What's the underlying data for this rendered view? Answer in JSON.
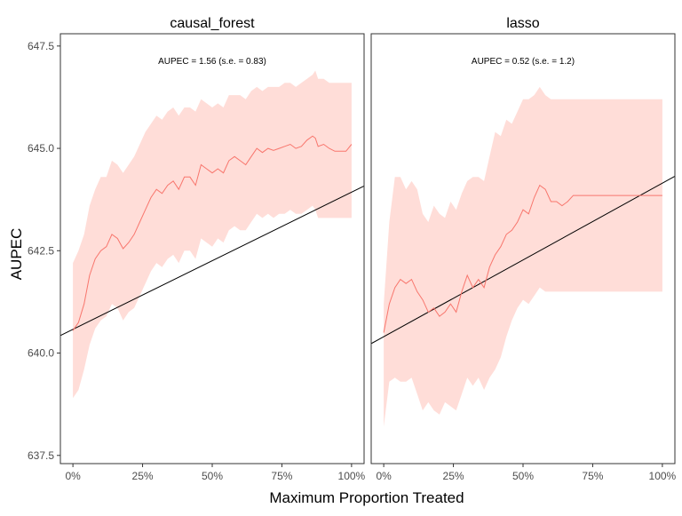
{
  "chart_data": {
    "type": "line",
    "xlabel": "Maximum Proportion Treated",
    "ylabel": "AUPEC",
    "xlim": [
      0,
      1
    ],
    "ylim": [
      637.3,
      647.8
    ],
    "x_ticks": [
      0,
      0.25,
      0.5,
      0.75,
      1.0
    ],
    "x_tick_labels": [
      "0%",
      "25%",
      "50%",
      "75%",
      "100%"
    ],
    "y_ticks": [
      637.5,
      640.0,
      642.5,
      645.0,
      647.5
    ],
    "y_tick_labels": [
      "637.5",
      "640.0",
      "642.5",
      "645.0",
      "647.5"
    ],
    "grid": false,
    "colors": {
      "line": "#F8766D",
      "band": "#FFDDD8",
      "reference": "#000000",
      "border": "#333333"
    },
    "panels": [
      {
        "title": "causal_forest",
        "annotation": "AUPEC = 1.56 (s.e. = 0.83)",
        "reference_line": {
          "intercept": 640.58,
          "slope": 3.35
        },
        "series": {
          "x": [
            0.0,
            0.02,
            0.04,
            0.06,
            0.08,
            0.1,
            0.12,
            0.14,
            0.16,
            0.18,
            0.2,
            0.22,
            0.24,
            0.26,
            0.28,
            0.3,
            0.32,
            0.34,
            0.36,
            0.38,
            0.4,
            0.42,
            0.44,
            0.46,
            0.48,
            0.5,
            0.52,
            0.54,
            0.56,
            0.58,
            0.6,
            0.62,
            0.64,
            0.66,
            0.68,
            0.7,
            0.72,
            0.74,
            0.76,
            0.78,
            0.8,
            0.82,
            0.84,
            0.86,
            0.87,
            0.88,
            0.9,
            0.92,
            0.94,
            0.96,
            0.98,
            1.0
          ],
          "y": [
            640.55,
            640.75,
            641.2,
            641.9,
            642.3,
            642.5,
            642.6,
            642.9,
            642.8,
            642.55,
            642.7,
            642.9,
            643.2,
            643.5,
            643.8,
            644.0,
            643.9,
            644.1,
            644.2,
            644.0,
            644.3,
            644.3,
            644.1,
            644.6,
            644.5,
            644.4,
            644.5,
            644.4,
            644.7,
            644.8,
            644.7,
            644.6,
            644.8,
            645.0,
            644.9,
            645.0,
            644.95,
            645.0,
            645.05,
            645.1,
            645.0,
            645.05,
            645.2,
            645.3,
            645.25,
            645.05,
            645.1,
            645.0,
            644.93,
            644.93,
            644.93,
            645.1
          ],
          "upper": [
            642.2,
            642.5,
            642.9,
            643.6,
            644.0,
            644.3,
            644.3,
            644.7,
            644.6,
            644.4,
            644.6,
            644.8,
            645.1,
            645.4,
            645.6,
            645.8,
            645.7,
            645.9,
            646.0,
            645.8,
            646.0,
            646.0,
            645.9,
            646.2,
            646.1,
            646.0,
            646.1,
            646.0,
            646.3,
            646.3,
            646.3,
            646.2,
            646.4,
            646.5,
            646.4,
            646.5,
            646.5,
            646.5,
            646.6,
            646.6,
            646.5,
            646.6,
            646.7,
            646.8,
            646.9,
            646.7,
            646.7,
            646.6,
            646.6,
            646.6,
            646.6,
            646.6
          ],
          "lower": [
            638.9,
            639.1,
            639.6,
            640.2,
            640.6,
            640.8,
            640.9,
            641.2,
            641.1,
            640.8,
            641.0,
            641.1,
            641.4,
            641.7,
            642.0,
            642.2,
            642.1,
            642.3,
            642.4,
            642.2,
            642.5,
            642.5,
            642.3,
            642.8,
            642.7,
            642.6,
            642.8,
            642.7,
            643.0,
            643.1,
            643.0,
            643.0,
            643.2,
            643.4,
            643.3,
            643.4,
            643.3,
            643.4,
            643.4,
            643.5,
            643.4,
            643.4,
            643.5,
            643.6,
            643.5,
            643.3,
            643.3,
            643.3,
            643.3,
            643.3,
            643.3,
            643.3
          ]
        }
      },
      {
        "title": "lasso",
        "annotation": "AUPEC = 0.52 (s.e. = 1.2)",
        "reference_line": {
          "intercept": 640.4,
          "slope": 3.75
        },
        "series": {
          "x": [
            0.0,
            0.02,
            0.04,
            0.06,
            0.08,
            0.1,
            0.12,
            0.14,
            0.16,
            0.18,
            0.2,
            0.22,
            0.24,
            0.26,
            0.28,
            0.3,
            0.32,
            0.34,
            0.36,
            0.38,
            0.4,
            0.42,
            0.44,
            0.46,
            0.48,
            0.5,
            0.52,
            0.54,
            0.56,
            0.58,
            0.6,
            0.62,
            0.64,
            0.66,
            0.68,
            1.0
          ],
          "y": [
            640.5,
            641.2,
            641.6,
            641.8,
            641.7,
            641.8,
            641.5,
            641.3,
            641.0,
            641.1,
            640.9,
            641.0,
            641.2,
            641.0,
            641.5,
            641.9,
            641.6,
            641.8,
            641.6,
            642.1,
            642.4,
            642.6,
            642.9,
            643.0,
            643.2,
            643.5,
            643.4,
            643.8,
            644.1,
            644.0,
            643.7,
            643.7,
            643.6,
            643.7,
            643.85,
            643.85
          ],
          "upper": [
            641.2,
            643.2,
            644.3,
            644.3,
            644.0,
            644.2,
            644.0,
            643.4,
            643.2,
            643.6,
            643.4,
            643.3,
            643.7,
            643.5,
            643.9,
            644.2,
            644.3,
            644.3,
            644.2,
            644.8,
            645.4,
            645.3,
            645.7,
            645.6,
            645.9,
            646.2,
            646.2,
            646.3,
            646.5,
            646.3,
            646.2,
            646.2,
            646.2,
            646.2,
            646.2,
            646.2
          ],
          "lower": [
            638.2,
            639.3,
            639.4,
            639.3,
            639.3,
            639.4,
            639.0,
            638.6,
            638.8,
            638.6,
            638.5,
            638.8,
            638.7,
            638.6,
            639.0,
            639.4,
            639.2,
            639.4,
            639.1,
            639.4,
            639.6,
            639.9,
            640.4,
            640.8,
            641.1,
            641.3,
            641.2,
            641.4,
            641.6,
            641.5,
            641.5,
            641.5,
            641.5,
            641.5,
            641.5,
            641.5
          ]
        }
      }
    ]
  }
}
